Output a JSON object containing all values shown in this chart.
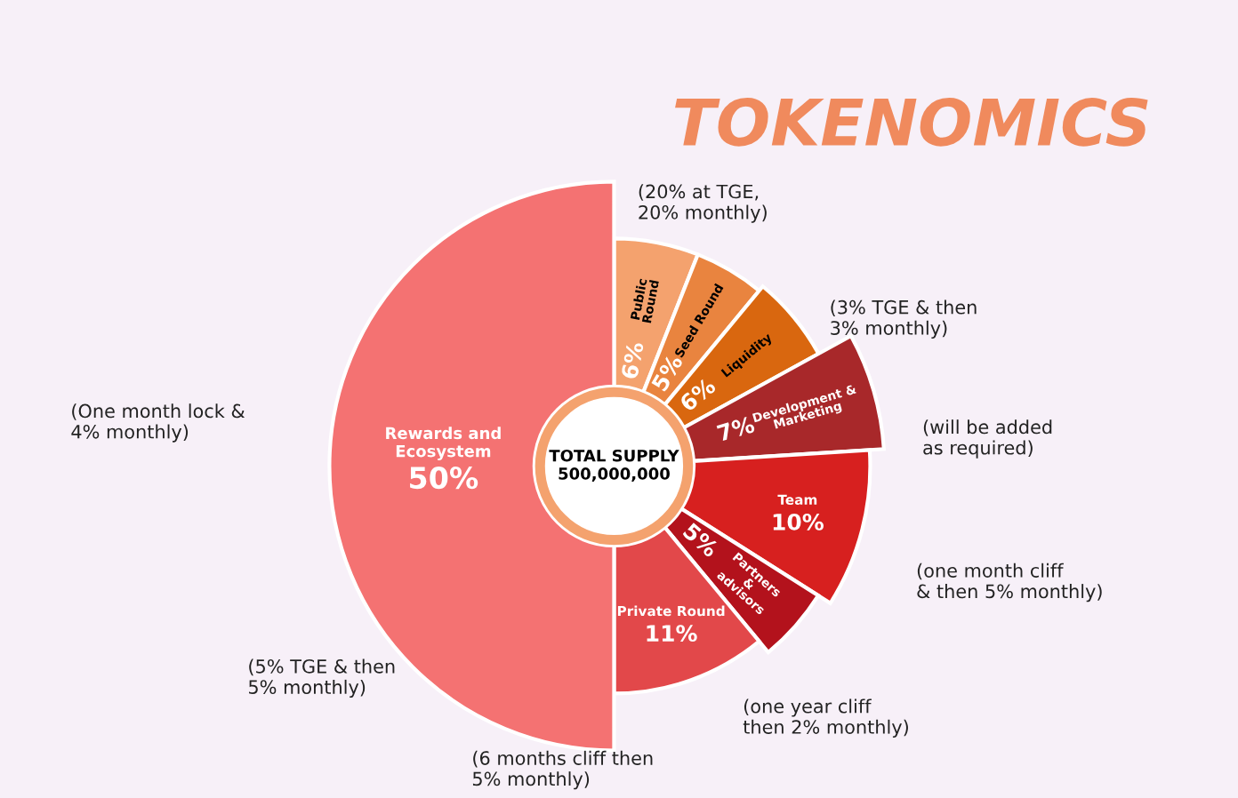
{
  "chart_data": {
    "type": "donut",
    "title": "TOKENOMICS",
    "categories": [
      "Public\nRound",
      "Seed Round",
      "Liquidity",
      "Development &\nMarketing",
      "Team",
      "Partners\n&\nadvisors",
      "Private Round",
      "Rewards and\nEcosystem"
    ],
    "values": [
      6,
      5,
      6,
      7,
      10,
      5,
      11,
      50
    ],
    "value_labels": [
      "6%",
      "5%",
      "6%",
      "7%",
      "10%",
      "5%",
      "11%",
      "50%"
    ],
    "colors": [
      "#f4a26e",
      "#e9843f",
      "#d9670f",
      "#a8282a",
      "#d7201f",
      "#b3121c",
      "#e2484a",
      "#f47272"
    ],
    "legend": false,
    "annotations": [
      "TOTAL SUPPLY\n500,000,000",
      "(20% at TGE,\n20% monthly)",
      "(3% TGE & then\n3% monthly)",
      "(will be added\nas required)",
      "(one month cliff\n& then 5% monthly)",
      "(one year cliff\nthen 2% monthly)",
      "(6 months cliff then\n5% monthly)",
      "(5% TGE & then\n5% monthly)",
      "(One month lock &\n4% monthly)"
    ]
  }
}
